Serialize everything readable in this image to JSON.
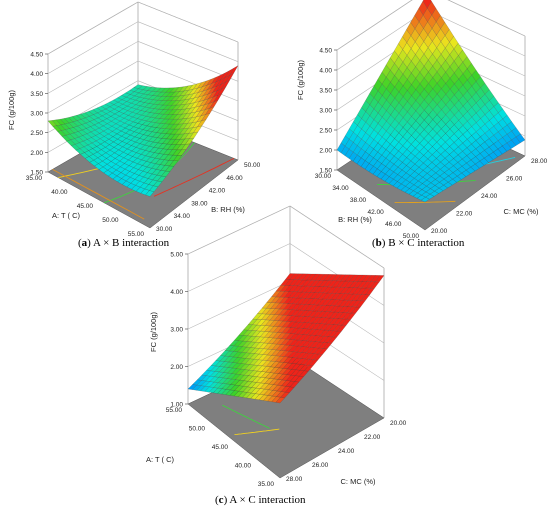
{
  "figure": {
    "captions": [
      {
        "letter": "a",
        "text": " A × B interaction"
      },
      {
        "letter": "b",
        "text": " B × C interaction"
      },
      {
        "letter": "c",
        "text": " A × C interaction"
      }
    ]
  },
  "chart_data": [
    {
      "type": "surface",
      "title": "",
      "zlabel": "FC (g/100g)",
      "z_ticks": [
        "1.50",
        "2.00",
        "2.50",
        "3.00",
        "3.50",
        "4.00",
        "4.50"
      ],
      "zlim": [
        1.5,
        4.5
      ],
      "x_axis": {
        "label": "A: T ( C)",
        "ticks": [
          "35.00",
          "40.00",
          "45.00",
          "50.00",
          "55.00"
        ]
      },
      "y_axis": {
        "label": "B: RH (%)",
        "ticks": [
          "30.00",
          "34.00",
          "38.00",
          "42.00",
          "46.00",
          "50.00"
        ]
      },
      "corner_values": {
        "T35_RH30": 2.8,
        "T55_RH30": 2.3,
        "T35_RH50": 2.4,
        "T55_RH50": 3.9,
        "min": 2.0
      },
      "colormap": "blue-green-yellow-red",
      "floor_contours": true
    },
    {
      "type": "surface",
      "title": "",
      "zlabel": "FC (g/100g)",
      "z_ticks": [
        "1.50",
        "2.00",
        "2.50",
        "3.00",
        "3.50",
        "4.00",
        "4.50"
      ],
      "zlim": [
        1.5,
        4.5
      ],
      "x_axis": {
        "label": "B: RH (%)",
        "ticks": [
          "30.00",
          "34.00",
          "38.00",
          "42.00",
          "46.00",
          "50.00"
        ]
      },
      "y_axis": {
        "label": "C: MC (%)",
        "ticks": [
          "20.00",
          "22.00",
          "24.00",
          "26.00",
          "28.00"
        ]
      },
      "corner_values": {
        "RH30_MC20": 2.0,
        "RH50_MC20": 2.2,
        "RH30_MC28": 4.4,
        "RH50_MC28": 1.9
      },
      "colormap": "blue-green-yellow-red",
      "floor_contours": true
    },
    {
      "type": "surface",
      "title": "",
      "zlabel": "FC (g/100g)",
      "z_ticks": [
        "1.00",
        "2.00",
        "3.00",
        "4.00",
        "5.00"
      ],
      "zlim": [
        1.0,
        5.0
      ],
      "x_axis": {
        "label": "A: T ( C)",
        "ticks": [
          "35.00",
          "40.00",
          "45.00",
          "50.00",
          "55.00"
        ]
      },
      "y_axis": {
        "label": "C: MC (%)",
        "ticks": [
          "20.00",
          "22.00",
          "24.00",
          "26.00",
          "28.00"
        ]
      },
      "corner_values": {
        "T55_MC28": 1.4,
        "T35_MC28": 3.0,
        "T55_MC20": 3.2,
        "T35_MC20": 4.8
      },
      "colormap": "blue-green-yellow-red",
      "floor_contours": true
    }
  ]
}
